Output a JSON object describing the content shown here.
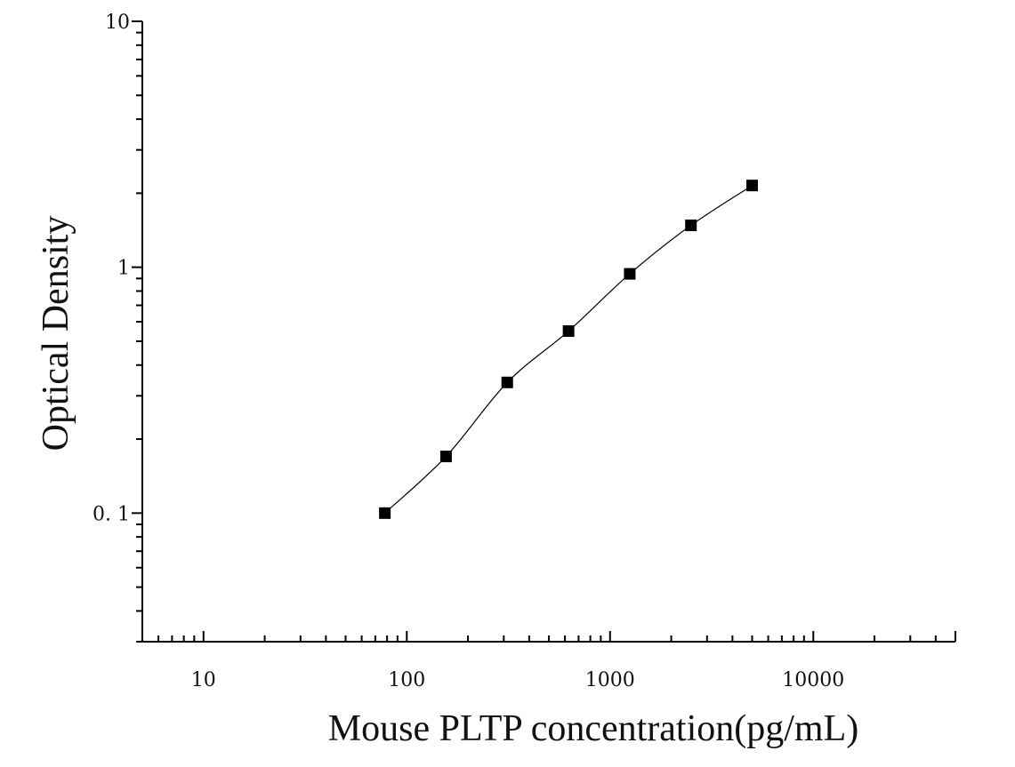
{
  "chart_data": {
    "type": "scatter",
    "title": "",
    "xlabel": "Mouse PLTP concentration(pg/mL)",
    "ylabel": "Optical Density",
    "x_scale": "log",
    "y_scale": "log",
    "xlim": [
      5,
      50000
    ],
    "ylim": [
      0.03,
      10
    ],
    "x_tick_values": [
      10,
      100,
      1000,
      10000
    ],
    "x_tick_labels": [
      "10",
      "100",
      "1000",
      "10000"
    ],
    "y_tick_values": [
      0.1,
      1,
      10
    ],
    "y_tick_labels": [
      "0. 1",
      "1",
      "10"
    ],
    "grid": false,
    "legend": "none",
    "series": [
      {
        "marker": "square",
        "color": "#000000",
        "x": [
          78,
          156,
          312,
          625,
          1250,
          2500,
          5000
        ],
        "y": [
          0.1,
          0.17,
          0.34,
          0.55,
          0.94,
          1.48,
          2.15
        ]
      }
    ],
    "fit_curve": {
      "color": "#000000"
    }
  }
}
